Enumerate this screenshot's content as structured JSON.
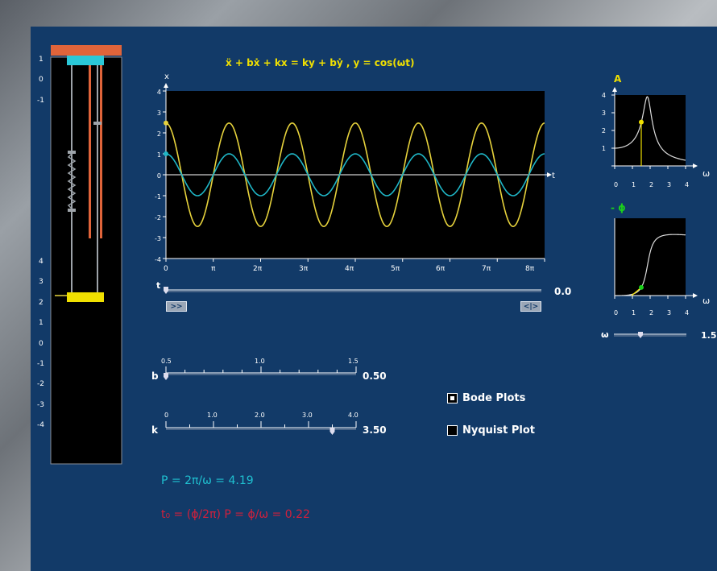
{
  "equation": "ẍ + bẋ + kx = ky + bẏ , y = cos(ωt)",
  "spring_panel": {
    "upper_ticks": [
      "1",
      "0",
      "-1"
    ],
    "lower_ticks": [
      "4",
      "3",
      "2",
      "1",
      "0",
      "-1",
      "-2",
      "-3",
      "-4"
    ]
  },
  "main_plot": {
    "y_axis_label": "x",
    "x_axis_label": "t",
    "y_ticks": [
      "4",
      "3",
      "2",
      "1",
      "0",
      "-1",
      "-2",
      "-3",
      "-4"
    ],
    "x_ticks": [
      "0",
      "π",
      "2π",
      "3π",
      "4π",
      "5π",
      "6π",
      "7π",
      "8π"
    ]
  },
  "chart_data": {
    "type": "line",
    "title": "ẍ + bẋ + kx = ky + bẏ , y = cos(ωt)",
    "xlabel": "t",
    "ylabel": "x",
    "xlim": [
      0,
      25.13
    ],
    "ylim": [
      -4,
      4
    ],
    "series": [
      {
        "color": "#e6d23c",
        "amplitude": 2.47,
        "omega": 1.5,
        "phase": 0,
        "description": "x(t) response"
      },
      {
        "color": "#1fb6c6",
        "amplitude": 1.0,
        "omega": 1.5,
        "phase": 0,
        "description": "y(t) = cos(ωt) input"
      }
    ]
  },
  "t_slider": {
    "label": "t",
    "value": "0.0",
    "level": 0.0
  },
  "play_controls": {
    "play_label": ">>",
    "step_label": "<|>"
  },
  "b_slider": {
    "label": "b",
    "value": "0.50",
    "ticks": [
      "0.5",
      "1.0",
      "1.5"
    ],
    "level": 0.0
  },
  "k_slider": {
    "label": "k",
    "value": "3.50",
    "ticks": [
      "0",
      "1.0",
      "2.0",
      "3.0",
      "4.0"
    ],
    "level": 0.875
  },
  "options": {
    "bode_label": "Bode Plots",
    "bode_checked": true,
    "nyquist_label": "Nyquist Plot",
    "nyquist_checked": false
  },
  "bode_amplitude": {
    "y_label": "A",
    "x_label": "ω",
    "y_ticks": [
      "4",
      "3",
      "2",
      "1",
      "0"
    ],
    "x_ticks": [
      "0",
      "1",
      "2",
      "3",
      "4"
    ],
    "marker_omega": 1.5,
    "marker_value": 2.47
  },
  "bode_phase": {
    "y_label": "- ϕ",
    "x_label": "ω",
    "x_ticks": [
      "0",
      "1",
      "2",
      "3",
      "4"
    ],
    "marker_omega": 1.5
  },
  "omega_slider": {
    "label": "ω",
    "value": "1.5",
    "level": 0.375
  },
  "readouts": {
    "period": "P = 2π/ω = 4.19",
    "delay": "t₀ = (ϕ/2π) P = ϕ/ω = 0.22"
  },
  "colors": {
    "panel": "#123a68",
    "yellow": "#e6d23c",
    "cyan": "#1fb6c6",
    "orange": "#e0643a",
    "red": "#d0203c",
    "green": "#1bd01b"
  }
}
